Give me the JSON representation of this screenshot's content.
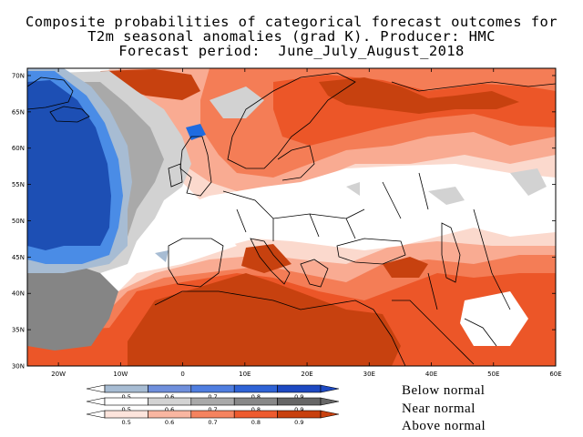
{
  "title": {
    "line1": "Composite probabilities of categorical forecast outcomes for",
    "line2": "T2m seasonal anomalies (grad K). Producer: HMC",
    "line3": "Forecast period:  June_July_August_2018"
  },
  "map": {
    "lat_labels": [
      "70N",
      "65N",
      "60N",
      "55N",
      "50N",
      "45N",
      "40N",
      "35N",
      "30N"
    ],
    "lon_labels": [
      "20W",
      "10W",
      "0",
      "10E",
      "20E",
      "30E",
      "40E",
      "50E",
      "60E"
    ],
    "extent": {
      "lon_min": -25,
      "lon_max": 60,
      "lat_min": 30,
      "lat_max": 71
    }
  },
  "legend": {
    "tick_labels": [
      "0.5",
      "0.6",
      "0.7",
      "0.8",
      "0.9"
    ],
    "rows": [
      {
        "label": "Below normal",
        "colors": [
          "#a7bcd3",
          "#6f8fdc",
          "#4f7ee0",
          "#2f63d6",
          "#1d49c2"
        ]
      },
      {
        "label": "Near normal",
        "colors": [
          "#ffffff",
          "#d3d3d3",
          "#a9a9a9",
          "#888888",
          "#666666"
        ]
      },
      {
        "label": "Above normal",
        "colors": [
          "#fde4dc",
          "#f9b6a1",
          "#f5835f",
          "#ee5a2e",
          "#c8400e"
        ]
      }
    ]
  },
  "colors": {
    "above_1": "#fbd9cd",
    "above_2": "#f9ab92",
    "above_3": "#f47d56",
    "above_4": "#ec5628",
    "above_5": "#c7410f",
    "near_1": "#d2d2d2",
    "near_2": "#a9a9a9",
    "near_3": "#858585",
    "below_1": "#a7bcd3",
    "below_2": "#4a8ce6",
    "below_3": "#1f6be0",
    "below_4": "#1d4fb4"
  }
}
